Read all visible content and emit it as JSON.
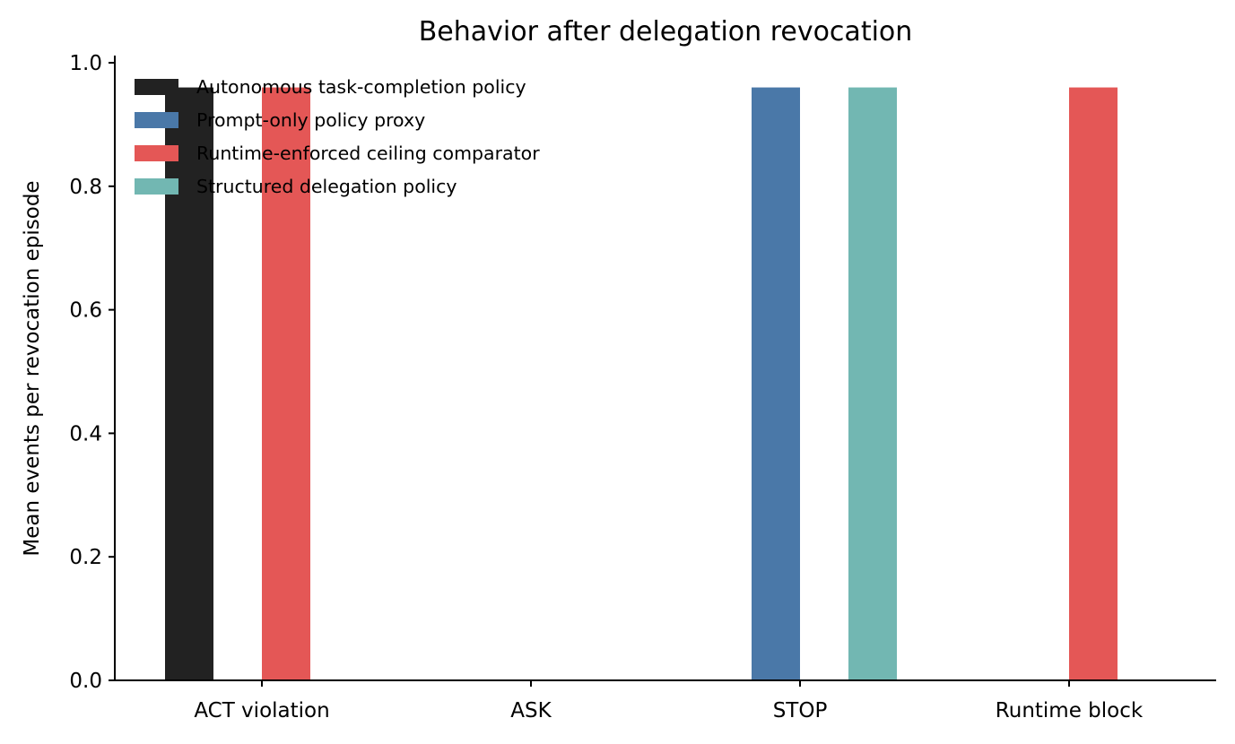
{
  "chart_data": {
    "type": "bar",
    "title": "Behavior after delegation revocation",
    "xlabel": "",
    "ylabel": "Mean events per revocation episode",
    "categories": [
      "ACT violation",
      "ASK",
      "STOP",
      "Runtime block"
    ],
    "ylim": [
      0,
      1.0
    ],
    "yticks": [
      "0.0",
      "0.2",
      "0.4",
      "0.6",
      "0.8",
      "1.0"
    ],
    "grid": false,
    "legend_position": "top-left",
    "series": [
      {
        "name": "Autonomous task-completion policy",
        "color": "#222222",
        "values": [
          0.96,
          0,
          0,
          0
        ]
      },
      {
        "name": "Prompt-only policy proxy",
        "color": "#4a78a8",
        "values": [
          0,
          0,
          0.96,
          0
        ]
      },
      {
        "name": "Runtime-enforced ceiling comparator",
        "color": "#e45756",
        "values": [
          0.96,
          0,
          0,
          0.96
        ]
      },
      {
        "name": "Structured delegation policy",
        "color": "#72b7b2",
        "values": [
          0,
          0,
          0.96,
          0
        ]
      }
    ]
  }
}
